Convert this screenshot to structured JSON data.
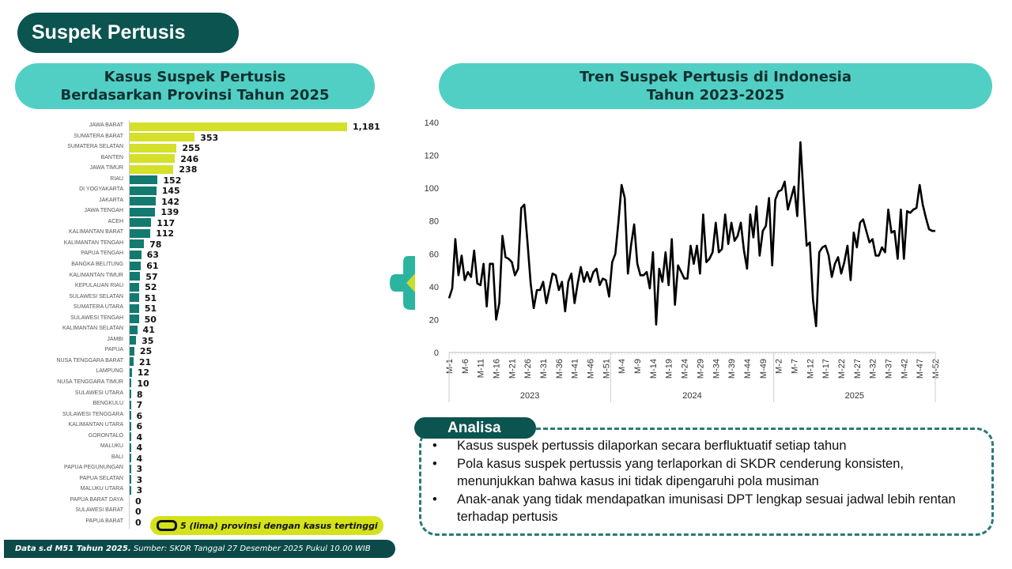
{
  "page_title": "Suspek Pertusis",
  "left_header": {
    "line1": "Kasus Suspek Pertusis",
    "line2": "Berdasarkan Provinsi Tahun 2025"
  },
  "right_header": {
    "line1": "Tren Suspek Pertusis di Indonesia",
    "line2": "Tahun 2023-2025"
  },
  "legend": {
    "label": "5 (lima) provinsi dengan kasus tertinggi"
  },
  "footer": {
    "bold": "Data s.d M51 Tahun 2025.",
    "source": " Sumber: SKDR Tanggal 27 Desember 2025 Pukul 10.00 WIB"
  },
  "analysis": {
    "title": "Analisa",
    "items": [
      "Kasus suspek pertussis dilaporkan secara berfluktuatif setiap tahun",
      "Pola kasus suspek pertussis yang terlaporkan di SKDR cenderung konsisten, menunjukkan bahwa kasus ini tidak dipengaruhi pola musiman",
      "Anak-anak yang tidak mendapatkan imunisasi DPT lengkap sesuai jadwal lebih rentan terhadap pertusis"
    ]
  },
  "colors": {
    "highlight": "#d4e02a",
    "bar": "#137a70",
    "line": "#000000",
    "dark": "#0b5450",
    "header": "#52cfc4"
  },
  "chart_data": [
    {
      "type": "bar",
      "orientation": "horizontal",
      "title": "Kasus Suspek Pertusis Berdasarkan Provinsi Tahun 2025",
      "highlight_top": 5,
      "categories": [
        "JAWA BARAT",
        "SUMATERA BARAT",
        "SUMATERA SELATAN",
        "BANTEN",
        "JAWA TIMUR",
        "RIAU",
        "DI YOGYAKARTA",
        "JAKARTA",
        "JAWA TENGAH",
        "ACEH",
        "KALIMANTAN BARAT",
        "KALIMANTAN TENGAH",
        "PAPUA TENGAH",
        "BANGKA BELITUNG",
        "KALIMANTAN TIMUR",
        "KEPULAUAN RIAU",
        "SULAWESI SELATAN",
        "SUMATERA UTARA",
        "SULAWESI TENGAH",
        "KALIMANTAN SELATAN",
        "JAMBI",
        "PAPUA",
        "NUSA TENGGARA BARAT",
        "LAMPUNG",
        "NUSA TENGGARA TIMUR",
        "SULAWESI UTARA",
        "BENGKULU",
        "SULAWESI TENGGARA",
        "KALIMANTAN UTARA",
        "GORONTALO",
        "MALUKU",
        "BALI",
        "PAPUA PEGUNUNGAN",
        "PAPUA SELATAN",
        "MALUKU UTARA",
        "PAPUA BARAT DAYA",
        "SULAWESI BARAT",
        "PAPUA BARAT"
      ],
      "values": [
        1181,
        353,
        255,
        246,
        238,
        152,
        145,
        142,
        139,
        117,
        112,
        78,
        63,
        61,
        57,
        52,
        51,
        51,
        50,
        41,
        35,
        25,
        21,
        12,
        10,
        8,
        7,
        6,
        6,
        4,
        4,
        4,
        3,
        3,
        3,
        0,
        0,
        0
      ],
      "value_labels": [
        "1,181",
        "353",
        "255",
        "246",
        "238",
        "152",
        "145",
        "142",
        "139",
        "117",
        "112",
        "78",
        "63",
        "61",
        "57",
        "52",
        "51",
        "51",
        "50",
        "41",
        "35",
        "25",
        "21",
        "12",
        "10",
        "8",
        "7",
        "6",
        "6",
        "4",
        "4",
        "4",
        "3",
        "3",
        "3",
        "0",
        "0",
        "0"
      ]
    },
    {
      "type": "line",
      "title": "Tren Suspek Pertusis di Indonesia Tahun 2023-2025",
      "ylim": [
        0,
        140
      ],
      "yticks": [
        "0",
        "20",
        "40",
        "60",
        "80",
        "100",
        "120",
        "140"
      ],
      "years": [
        "2023",
        "2024",
        "2025"
      ],
      "xtick_labels": {
        "2023": [
          "M-1",
          "M-6",
          "M-11",
          "M-16",
          "M-21",
          "M-26",
          "M-31",
          "M-36",
          "M-41",
          "M-46",
          "M-51"
        ],
        "2024": [
          "M-4",
          "M-9",
          "M-14",
          "M-19",
          "M-24",
          "M-29",
          "M-34",
          "M-39",
          "M-44",
          "M-49"
        ],
        "2025": [
          "M-2",
          "M-7",
          "M-12",
          "M-17",
          "M-22",
          "M-27",
          "M-32",
          "M-37",
          "M-42",
          "M-47",
          "M-52"
        ]
      },
      "series": [
        {
          "name": "Suspek Pertusis",
          "values_2023": [
            33,
            39,
            69,
            47,
            59,
            44,
            49,
            46,
            62,
            42,
            41,
            54,
            28,
            54,
            54,
            20,
            30,
            71,
            58,
            57,
            55,
            47,
            51,
            88,
            90,
            67,
            42,
            27,
            38,
            38,
            43,
            30,
            39,
            48,
            47,
            38,
            43,
            25,
            43,
            48,
            30,
            42,
            52,
            43,
            49,
            43,
            49,
            51,
            41,
            45,
            44,
            34
          ],
          "values_2024": [
            55,
            60,
            80,
            102,
            94,
            48,
            65,
            78,
            54,
            47,
            47,
            49,
            39,
            61,
            17,
            51,
            43,
            61,
            41,
            69,
            29,
            53,
            49,
            45,
            45,
            65,
            54,
            65,
            48,
            84,
            55,
            57,
            61,
            79,
            61,
            63,
            84,
            66,
            79,
            68,
            71,
            79,
            62,
            51,
            84,
            70,
            89,
            59,
            74,
            77,
            94,
            53
          ],
          "values_2025": [
            93,
            98,
            99,
            104,
            87,
            94,
            101,
            83,
            128,
            95,
            65,
            67,
            32,
            16,
            61,
            64,
            65,
            59,
            46,
            54,
            58,
            48,
            55,
            65,
            44,
            73,
            64,
            79,
            81,
            74,
            67,
            69,
            59,
            59,
            64,
            61,
            87,
            73,
            74,
            57,
            87,
            57,
            86,
            85,
            87,
            88,
            102,
            90,
            82,
            75,
            74,
            74
          ]
        }
      ]
    }
  ]
}
